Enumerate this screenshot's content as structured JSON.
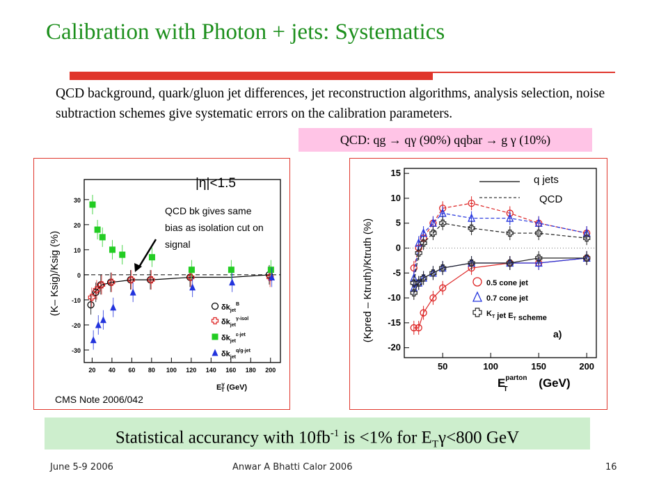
{
  "slide": {
    "title": "Calibration  with Photon + jets: Systematics",
    "intro": "QCD background, quark/gluon jet differences, jet reconstruction algorithms, analysis selection, noise subtraction schemes give systematic errors on the calibration parameters.",
    "qcd_processes": "QCD: qg → qγ (90%) qqbar → g γ (10%)",
    "conclusion": {
      "prefix": "Statistical accurancy with 10fb",
      "sup": "-1",
      "middle": " is <1% for E",
      "sub": "T",
      "suffix": "γ<800 GeV"
    },
    "footer": {
      "date": "June 5-9 2006",
      "center": "Anwar A Bhatti  Calor 2006",
      "page": "16"
    },
    "colors": {
      "title": "#1c8f1c",
      "rule": "#e0352b",
      "qcd_box": "#ffc4e6",
      "conclusion_box": "#cdeecd"
    }
  },
  "chart_data": [
    {
      "type": "scatter",
      "ylabel": "(K– Ksig)/Ksig (%)",
      "xlabel_main": "E",
      "xlabel_sup": "γ",
      "xlabel_sub": "T",
      "xlabel_unit": "(GeV)",
      "cut_label": "|η|<1.5",
      "annotation": "QCD bk gives same bias as isolation cut on signal",
      "source": "CMS Note 2006/042",
      "xlim": [
        12,
        210
      ],
      "ylim": [
        -35,
        38
      ],
      "xticks": [
        20,
        40,
        60,
        80,
        100,
        120,
        140,
        160,
        180,
        200
      ],
      "yticks": [
        -30,
        -20,
        -10,
        0,
        10,
        20,
        30
      ],
      "series": [
        {
          "legend_main": "δk",
          "legend_sub": "jet",
          "legend_sup": "B",
          "marker": "circle-open",
          "color": "#000000",
          "x": [
            20,
            25,
            30,
            40,
            60,
            80,
            120,
            200
          ],
          "y": [
            -12,
            -7,
            -4,
            -3,
            -2,
            -2,
            -1,
            0
          ]
        },
        {
          "legend_main": "δk",
          "legend_sub": "jet",
          "legend_sup": "γ-isol",
          "marker": "cross-open",
          "color": "#dd2222",
          "x": [
            20,
            25,
            30,
            40,
            60,
            80,
            120,
            200
          ],
          "y": [
            -9,
            -6,
            -4,
            -3,
            -2,
            -2,
            -1,
            -1
          ]
        },
        {
          "legend_main": "δk",
          "legend_sub": "jet",
          "legend_sup": "ε-jet",
          "marker": "square",
          "color": "#22cc22",
          "x": [
            20,
            25,
            30,
            40,
            50,
            80,
            120,
            160,
            200
          ],
          "y": [
            28,
            18,
            15,
            10,
            8,
            7,
            2,
            2,
            2
          ]
        },
        {
          "legend_main": "δk",
          "legend_sub": "jet",
          "legend_sup": "q/g-jet",
          "marker": "triangle",
          "color": "#2233dd",
          "x": [
            20,
            25,
            30,
            40,
            60,
            120,
            160,
            200
          ],
          "y": [
            -26,
            -20,
            -18,
            -13,
            -7,
            -5,
            -3,
            -1
          ]
        }
      ],
      "curve": {
        "x": [
          20,
          25,
          30,
          40,
          60,
          80,
          120,
          160,
          200
        ],
        "y": [
          -8,
          -6,
          -4,
          -3,
          -2,
          -2,
          -1,
          -1,
          0
        ]
      }
    },
    {
      "type": "line",
      "ylabel": "(Kpred – Ktruth)/Ktruth (%)",
      "xlabel_main": "E",
      "xlabel_sup": "parton",
      "xlabel_sub": "T",
      "xlabel_unit": "(GeV)",
      "panel_tag": "a)",
      "line_legend": [
        {
          "label": "q jets",
          "style": "solid"
        },
        {
          "label": "QCD",
          "style": "dashed"
        }
      ],
      "xlim": [
        10,
        210
      ],
      "ylim": [
        -22,
        16
      ],
      "xticks": [
        50,
        100,
        150,
        200
      ],
      "yticks": [
        -20,
        -15,
        -10,
        -5,
        0,
        5,
        10,
        15
      ],
      "series": [
        {
          "name": "0.5 cone jet",
          "marker": "circle-open",
          "color": "#dd2222",
          "qjets": {
            "x": [
              20,
              25,
              30,
              40,
              50,
              80,
              120,
              150,
              200
            ],
            "y": [
              -16,
              -16,
              -13,
              -10,
              -8,
              -4,
              -3,
              -3,
              -2
            ]
          },
          "qcd": {
            "x": [
              20,
              25,
              30,
              40,
              50,
              80,
              120,
              150,
              200
            ],
            "y": [
              -4,
              0,
              2,
              5,
              8,
              9,
              7,
              5,
              3
            ]
          }
        },
        {
          "name": "0.7 cone jet",
          "marker": "triangle-open",
          "color": "#2233dd",
          "qjets": {
            "x": [
              20,
              25,
              30,
              40,
              50,
              80,
              120,
              150,
              200
            ],
            "y": [
              -8,
              -7,
              -6,
              -5,
              -4,
              -3,
              -3,
              -3,
              -2
            ]
          },
          "qcd": {
            "x": [
              20,
              25,
              30,
              40,
              50,
              80,
              120,
              150,
              200
            ],
            "y": [
              -6,
              1,
              3,
              5,
              7,
              6,
              6,
              5,
              3
            ]
          }
        },
        {
          "name": "K_T jet E_T scheme",
          "marker": "cross-open",
          "color": "#222222",
          "qjets": {
            "x": [
              20,
              25,
              30,
              40,
              50,
              80,
              120,
              150,
              200
            ],
            "y": [
              -9,
              -7,
              -6,
              -5,
              -4,
              -3,
              -3,
              -2,
              -2
            ]
          },
          "qcd": {
            "x": [
              20,
              25,
              30,
              40,
              50,
              80,
              120,
              150,
              200
            ],
            "y": [
              -7,
              -1,
              1,
              3,
              5,
              4,
              3,
              3,
              2
            ]
          }
        }
      ]
    }
  ]
}
